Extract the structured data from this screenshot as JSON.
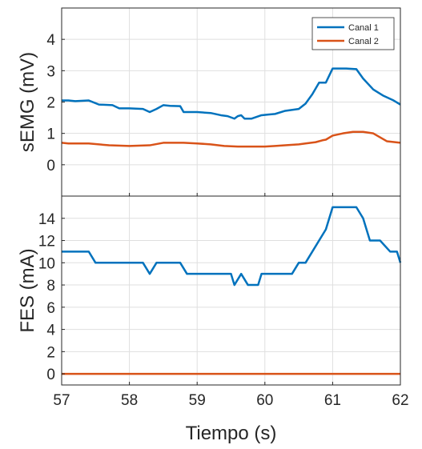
{
  "chart_data": [
    {
      "type": "line",
      "ylabel": "sEMG (mV)",
      "xlim": [
        57,
        62
      ],
      "ylim": [
        -1,
        5
      ],
      "yticks": [
        0,
        1,
        2,
        3,
        4
      ],
      "grid": true,
      "legend_position": "top-right",
      "series": [
        {
          "name": "Canal 1",
          "color": "#0072BD",
          "x": [
            57,
            57.1,
            57.2,
            57.4,
            57.55,
            57.75,
            57.85,
            58.0,
            58.2,
            58.3,
            58.4,
            58.5,
            58.6,
            58.75,
            58.8,
            59.0,
            59.2,
            59.35,
            59.45,
            59.55,
            59.6,
            59.65,
            59.7,
            59.8,
            59.95,
            60.05,
            60.15,
            60.3,
            60.5,
            60.6,
            60.7,
            60.8,
            60.85,
            60.9,
            61.0,
            61.1,
            61.2,
            61.35,
            61.45,
            61.6,
            61.75,
            61.9,
            62.0
          ],
          "y": [
            2.05,
            2.05,
            2.03,
            2.05,
            1.92,
            1.9,
            1.8,
            1.8,
            1.78,
            1.68,
            1.78,
            1.9,
            1.88,
            1.87,
            1.68,
            1.68,
            1.65,
            1.58,
            1.55,
            1.47,
            1.55,
            1.58,
            1.47,
            1.47,
            1.58,
            1.6,
            1.62,
            1.72,
            1.78,
            1.95,
            2.25,
            2.62,
            2.62,
            2.62,
            3.07,
            3.07,
            3.07,
            3.05,
            2.75,
            2.4,
            2.2,
            2.05,
            1.92
          ]
        },
        {
          "name": "Canal 2",
          "color": "#D95319",
          "x": [
            57,
            57.1,
            57.4,
            57.7,
            58.0,
            58.3,
            58.5,
            58.8,
            59.0,
            59.2,
            59.4,
            59.6,
            59.8,
            60.0,
            60.15,
            60.3,
            60.5,
            60.6,
            60.75,
            60.85,
            60.9,
            61.0,
            61.15,
            61.3,
            61.45,
            61.6,
            61.8,
            62.0
          ],
          "y": [
            0.7,
            0.68,
            0.68,
            0.62,
            0.6,
            0.62,
            0.7,
            0.7,
            0.68,
            0.65,
            0.6,
            0.58,
            0.58,
            0.58,
            0.6,
            0.62,
            0.65,
            0.68,
            0.72,
            0.78,
            0.8,
            0.93,
            1.0,
            1.05,
            1.05,
            1.0,
            0.75,
            0.7
          ]
        }
      ]
    },
    {
      "type": "line",
      "xlabel": "Tiempo (s)",
      "ylabel": "FES (mA)",
      "xlim": [
        57,
        62
      ],
      "ylim": [
        -1,
        16
      ],
      "xticks": [
        57,
        58,
        59,
        60,
        61,
        62
      ],
      "yticks": [
        0,
        2,
        4,
        6,
        8,
        10,
        12,
        14
      ],
      "grid": true,
      "series": [
        {
          "color": "#0072BD",
          "x": [
            57,
            57.4,
            57.5,
            58.2,
            58.3,
            58.4,
            58.75,
            58.85,
            59.5,
            59.55,
            59.65,
            59.75,
            59.9,
            59.95,
            60.4,
            60.5,
            60.6,
            60.9,
            61.0,
            61.35,
            61.45,
            61.5,
            61.55,
            61.65,
            61.7,
            61.85,
            61.95,
            62.0
          ],
          "y": [
            11,
            11,
            10,
            10,
            9,
            10,
            10,
            9,
            9,
            8,
            9,
            8,
            8,
            9,
            9,
            10,
            10,
            13,
            15,
            15,
            14,
            13,
            12,
            12,
            12,
            11,
            11,
            10
          ]
        },
        {
          "color": "#D95319",
          "x": [
            57,
            62
          ],
          "y": [
            0,
            0
          ]
        }
      ]
    }
  ]
}
